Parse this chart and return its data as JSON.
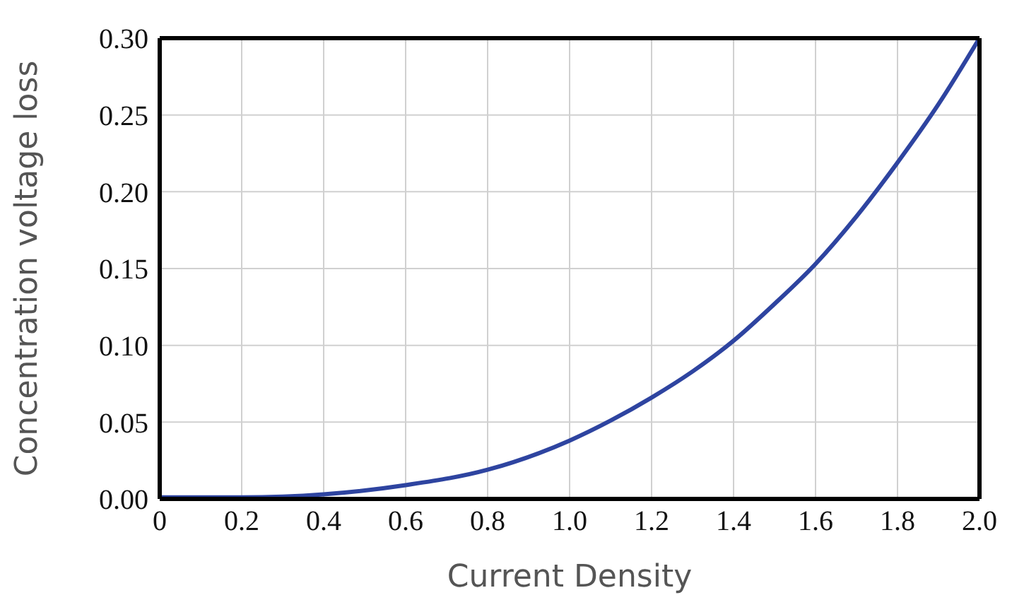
{
  "chart_data": {
    "type": "line",
    "xlabel": "Current Density",
    "ylabel": "Concentration voltage loss",
    "x": [
      0,
      0.2,
      0.4,
      0.6,
      0.8,
      1.0,
      1.1,
      1.2,
      1.3,
      1.4,
      1.5,
      1.6,
      1.7,
      1.8,
      1.9,
      2.0
    ],
    "series": [
      {
        "color": "#2e44a0",
        "values": [
          0.001,
          0.001,
          0.003,
          0.009,
          0.019,
          0.038,
          0.051,
          0.066,
          0.083,
          0.103,
          0.127,
          0.153,
          0.184,
          0.219,
          0.257,
          0.3
        ]
      }
    ],
    "xlim": [
      0,
      2.0
    ],
    "ylim": [
      0,
      0.3
    ],
    "xticks": [
      0,
      {
        "value": 0.2,
        "label": "0.2"
      },
      {
        "value": 0.4,
        "label": "0.4"
      },
      {
        "value": 0.6,
        "label": "0.6"
      },
      {
        "value": 0.8,
        "label": "0.8"
      },
      {
        "value": 1.0,
        "label": "1.0"
      },
      {
        "value": 1.2,
        "label": "1.2"
      },
      {
        "value": 1.4,
        "label": "1.4"
      },
      {
        "value": 1.6,
        "label": "1.6"
      },
      {
        "value": 1.8,
        "label": "1.8"
      },
      {
        "value": 2.0,
        "label": "2.0"
      }
    ],
    "yticks": [
      {
        "value": 0,
        "label": "0.00"
      },
      {
        "value": 0.05,
        "label": "0.05"
      },
      {
        "value": 0.1,
        "label": "0.10"
      },
      {
        "value": 0.15,
        "label": "0.15"
      },
      {
        "value": 0.2,
        "label": "0.20"
      },
      {
        "value": 0.25,
        "label": "0.25"
      },
      {
        "value": 0.3,
        "label": "0.30"
      }
    ],
    "grid": true,
    "marker": "none",
    "line_style": "solid",
    "legend": false
  }
}
